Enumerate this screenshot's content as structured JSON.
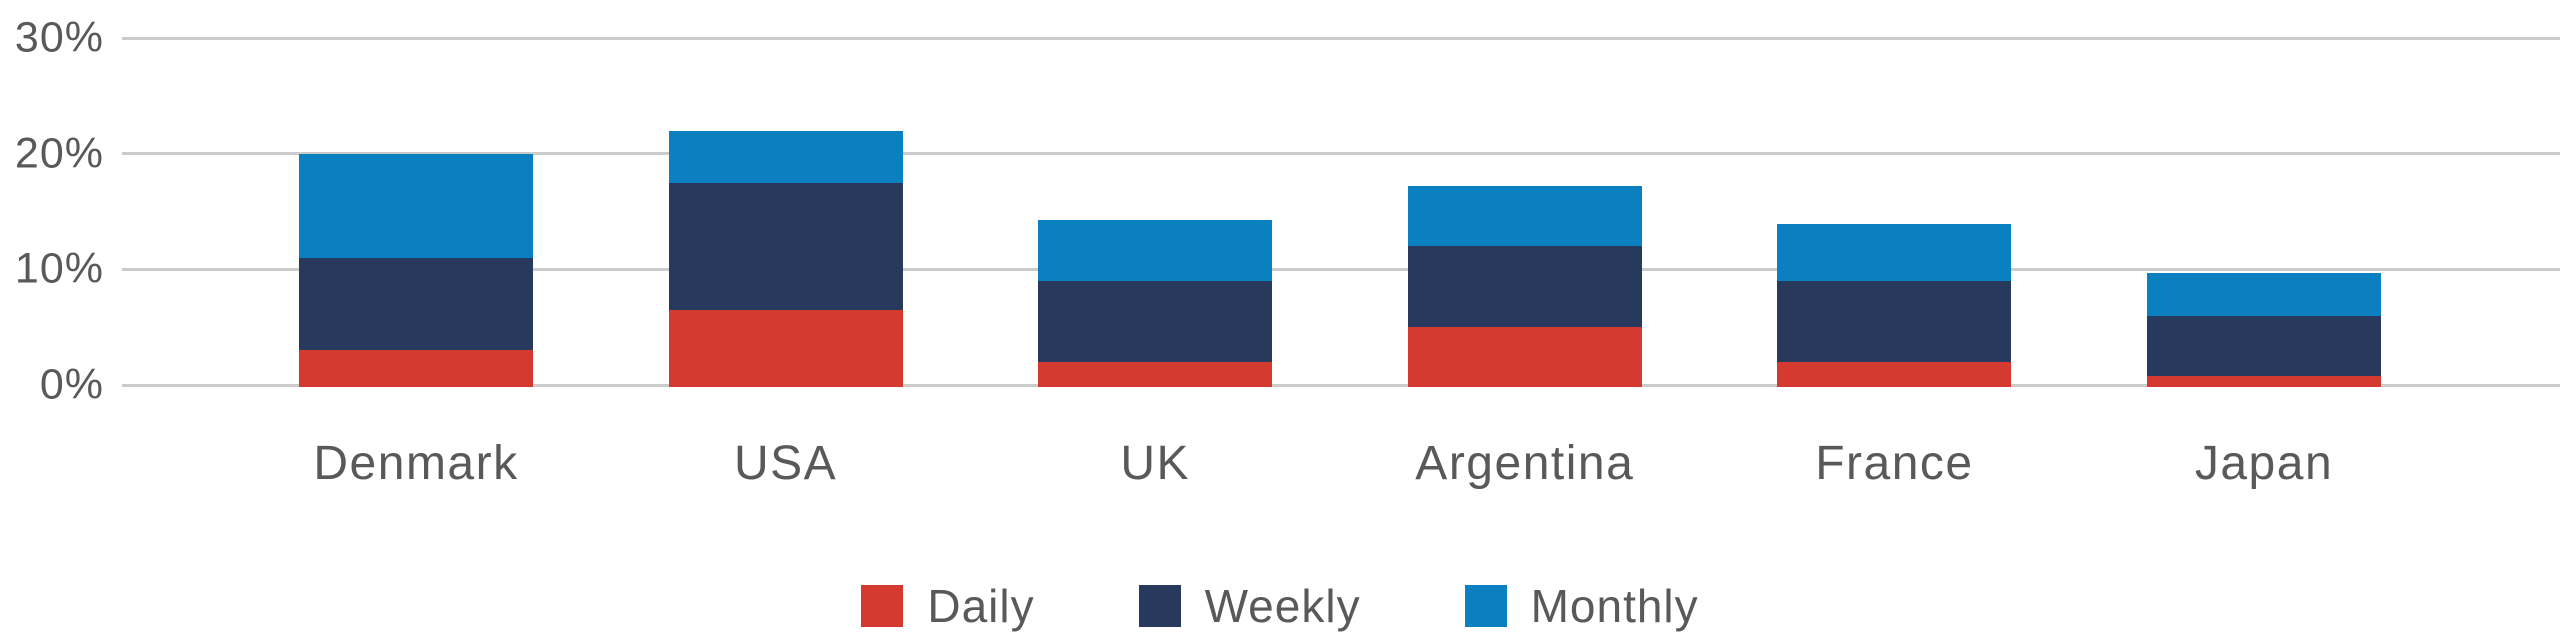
{
  "chart_data": {
    "type": "bar",
    "stacked": true,
    "title": "",
    "xlabel": "",
    "ylabel": "",
    "categories": [
      "Denmark",
      "USA",
      "UK",
      "Argentina",
      "France",
      "Japan"
    ],
    "series": [
      {
        "name": "Daily",
        "color": "#d53a31",
        "values": [
          3.0,
          6.5,
          2.0,
          5.0,
          2.0,
          0.8
        ]
      },
      {
        "name": "Weekly",
        "color": "#27395c",
        "values": [
          8.0,
          11.0,
          7.0,
          7.0,
          7.0,
          5.2
        ]
      },
      {
        "name": "Monthly",
        "color": "#0a80c1",
        "values": [
          9.0,
          4.5,
          5.3,
          5.2,
          4.9,
          3.7
        ]
      }
    ],
    "totals": [
      20.0,
      22.0,
      14.3,
      17.2,
      13.9,
      9.7
    ],
    "yticks": [
      {
        "label": "0%",
        "value": 0
      },
      {
        "label": "10%",
        "value": 10
      },
      {
        "label": "20%",
        "value": 20
      },
      {
        "label": "30%",
        "value": 30
      }
    ],
    "ylim": [
      0,
      30
    ],
    "grid": true,
    "legend_position": "bottom"
  }
}
